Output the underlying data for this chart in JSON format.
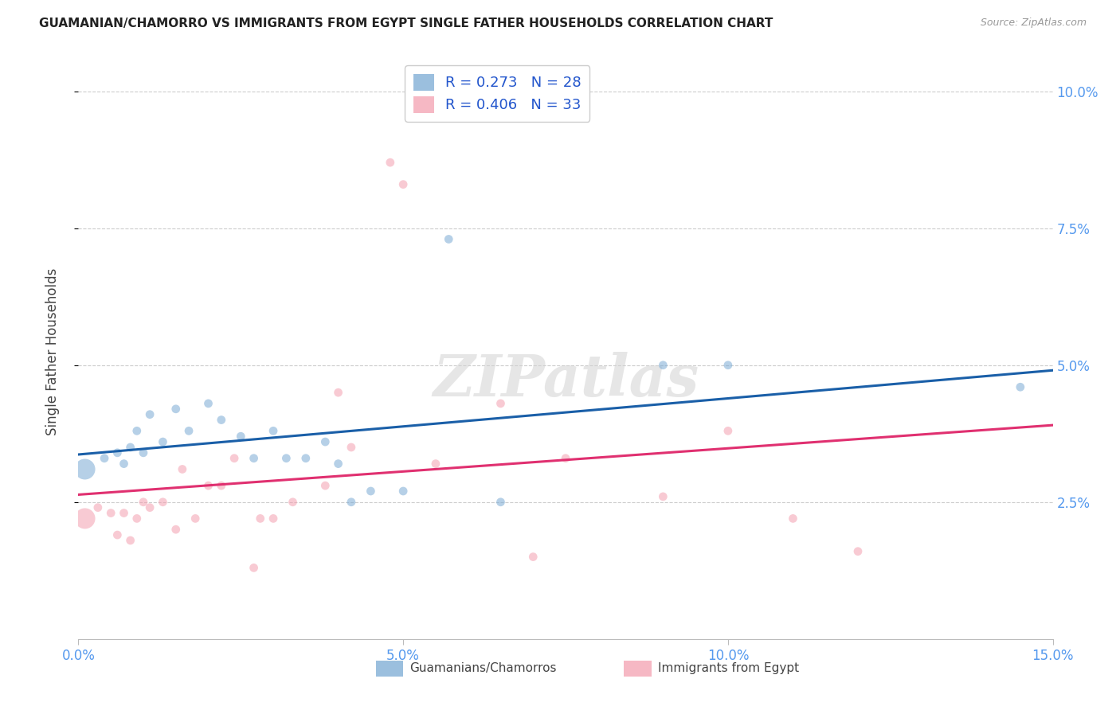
{
  "title": "GUAMANIAN/CHAMORRO VS IMMIGRANTS FROM EGYPT SINGLE FATHER HOUSEHOLDS CORRELATION CHART",
  "source": "Source: ZipAtlas.com",
  "ylabel": "Single Father Households",
  "xlim": [
    0.0,
    0.15
  ],
  "ylim": [
    0.0,
    0.105
  ],
  "xticks": [
    0.0,
    0.05,
    0.1,
    0.15
  ],
  "xtick_labels": [
    "0.0%",
    "5.0%",
    "10.0%",
    "15.0%"
  ],
  "yticks": [
    0.025,
    0.05,
    0.075,
    0.1
  ],
  "ytick_labels": [
    "2.5%",
    "5.0%",
    "7.5%",
    "10.0%"
  ],
  "blue_R": 0.273,
  "blue_N": 28,
  "pink_R": 0.406,
  "pink_N": 33,
  "blue_color": "#7aaad4",
  "pink_color": "#f4a0b0",
  "blue_line_color": "#1a5fa8",
  "pink_line_color": "#e03070",
  "watermark": "ZIPatlas",
  "legend_label_blue": "Guamanians/Chamorros",
  "legend_label_pink": "Immigrants from Egypt",
  "blue_scatter_x": [
    0.001,
    0.004,
    0.006,
    0.007,
    0.008,
    0.009,
    0.01,
    0.011,
    0.013,
    0.015,
    0.017,
    0.02,
    0.022,
    0.025,
    0.027,
    0.03,
    0.032,
    0.035,
    0.038,
    0.04,
    0.042,
    0.045,
    0.05,
    0.057,
    0.065,
    0.09,
    0.1,
    0.145
  ],
  "blue_scatter_y": [
    0.031,
    0.033,
    0.034,
    0.032,
    0.035,
    0.038,
    0.034,
    0.041,
    0.036,
    0.042,
    0.038,
    0.043,
    0.04,
    0.037,
    0.033,
    0.038,
    0.033,
    0.033,
    0.036,
    0.032,
    0.025,
    0.027,
    0.027,
    0.073,
    0.025,
    0.05,
    0.05,
    0.046
  ],
  "blue_scatter_sizes": [
    350,
    60,
    60,
    60,
    60,
    60,
    60,
    60,
    60,
    60,
    60,
    60,
    60,
    60,
    60,
    60,
    60,
    60,
    60,
    60,
    60,
    60,
    60,
    60,
    60,
    60,
    60,
    60
  ],
  "pink_scatter_x": [
    0.001,
    0.003,
    0.005,
    0.006,
    0.007,
    0.008,
    0.009,
    0.01,
    0.011,
    0.013,
    0.015,
    0.016,
    0.018,
    0.02,
    0.022,
    0.024,
    0.027,
    0.028,
    0.03,
    0.033,
    0.038,
    0.04,
    0.042,
    0.048,
    0.05,
    0.055,
    0.065,
    0.07,
    0.075,
    0.09,
    0.1,
    0.11,
    0.12
  ],
  "pink_scatter_y": [
    0.022,
    0.024,
    0.023,
    0.019,
    0.023,
    0.018,
    0.022,
    0.025,
    0.024,
    0.025,
    0.02,
    0.031,
    0.022,
    0.028,
    0.028,
    0.033,
    0.013,
    0.022,
    0.022,
    0.025,
    0.028,
    0.045,
    0.035,
    0.087,
    0.083,
    0.032,
    0.043,
    0.015,
    0.033,
    0.026,
    0.038,
    0.022,
    0.016
  ],
  "pink_scatter_sizes": [
    350,
    60,
    60,
    60,
    60,
    60,
    60,
    60,
    60,
    60,
    60,
    60,
    60,
    60,
    60,
    60,
    60,
    60,
    60,
    60,
    60,
    60,
    60,
    60,
    60,
    60,
    60,
    60,
    60,
    60,
    60,
    60,
    60
  ],
  "background_color": "#ffffff",
  "grid_color": "#cccccc"
}
